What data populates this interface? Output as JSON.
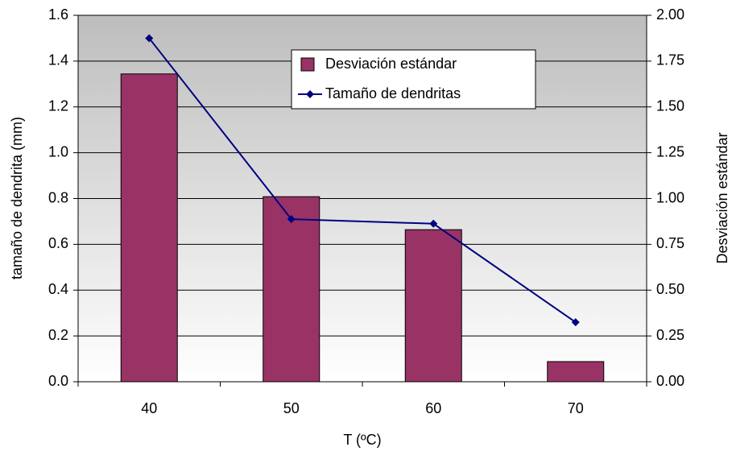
{
  "chart_data": {
    "type": "bar",
    "categories": [
      "40",
      "50",
      "60",
      "70"
    ],
    "x_label": "T (ºC)",
    "y_label": "tamaño de dendrita (mm)",
    "y2_label": "Desviación estándar",
    "series": [
      {
        "name": "Desviación estándar",
        "type": "bar",
        "axis": "y2",
        "color": "#993366",
        "values": [
          1.68,
          1.01,
          0.83,
          0.11
        ]
      },
      {
        "name": "Tamaño de dendritas",
        "type": "line",
        "axis": "y",
        "color": "#000080",
        "values": [
          1.5,
          0.71,
          0.69,
          0.26
        ]
      }
    ],
    "ylim": [
      0,
      1.6
    ],
    "yticks": [
      {
        "value": 0,
        "label": "0.0"
      },
      {
        "value": 0.2,
        "label": "0.2"
      },
      {
        "value": 0.4,
        "label": "0.4"
      },
      {
        "value": 0.6,
        "label": "0.6"
      },
      {
        "value": 0.8,
        "label": "0.8"
      },
      {
        "value": 1.0,
        "label": "1.0"
      },
      {
        "value": 1.2,
        "label": "1.2"
      },
      {
        "value": 1.4,
        "label": "1.4"
      },
      {
        "value": 1.6,
        "label": "1.6"
      }
    ],
    "y2lim": [
      0,
      2
    ],
    "y2ticks": [
      {
        "value": 0,
        "label": "0.00"
      },
      {
        "value": 0.25,
        "label": "0.25"
      },
      {
        "value": 0.5,
        "label": "0.50"
      },
      {
        "value": 0.75,
        "label": "0.75"
      },
      {
        "value": 1.0,
        "label": "1.00"
      },
      {
        "value": 1.25,
        "label": "1.25"
      },
      {
        "value": 1.5,
        "label": "1.50"
      },
      {
        "value": 1.75,
        "label": "1.75"
      },
      {
        "value": 2.0,
        "label": "2.00"
      }
    ],
    "grid": true
  }
}
